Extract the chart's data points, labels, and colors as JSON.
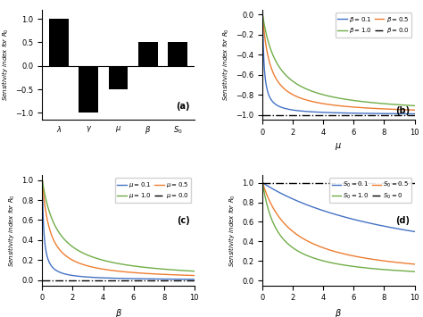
{
  "bar_categories": [
    "λ",
    "γ",
    "μ",
    "β",
    "S_0"
  ],
  "bar_values": [
    1.0,
    -1.0,
    -0.5,
    0.5,
    0.5
  ],
  "bar_star_positions": [
    null,
    null,
    -0.62,
    0.58,
    0.58
  ],
  "panel_a_label": "(a)",
  "panel_b_label": "(b)",
  "panel_c_label": "(c)",
  "panel_d_label": "(d)",
  "colors_3line": [
    "#4472c4",
    "#ed7d31",
    "#70ad47"
  ],
  "color_dashdot": "black",
  "bar_color": "black",
  "betas_b": [
    0.1,
    0.5,
    1.0
  ],
  "mus_c": [
    0.1,
    0.5,
    1.0
  ],
  "S0_vals": [
    0.1,
    0.5,
    1.0
  ]
}
